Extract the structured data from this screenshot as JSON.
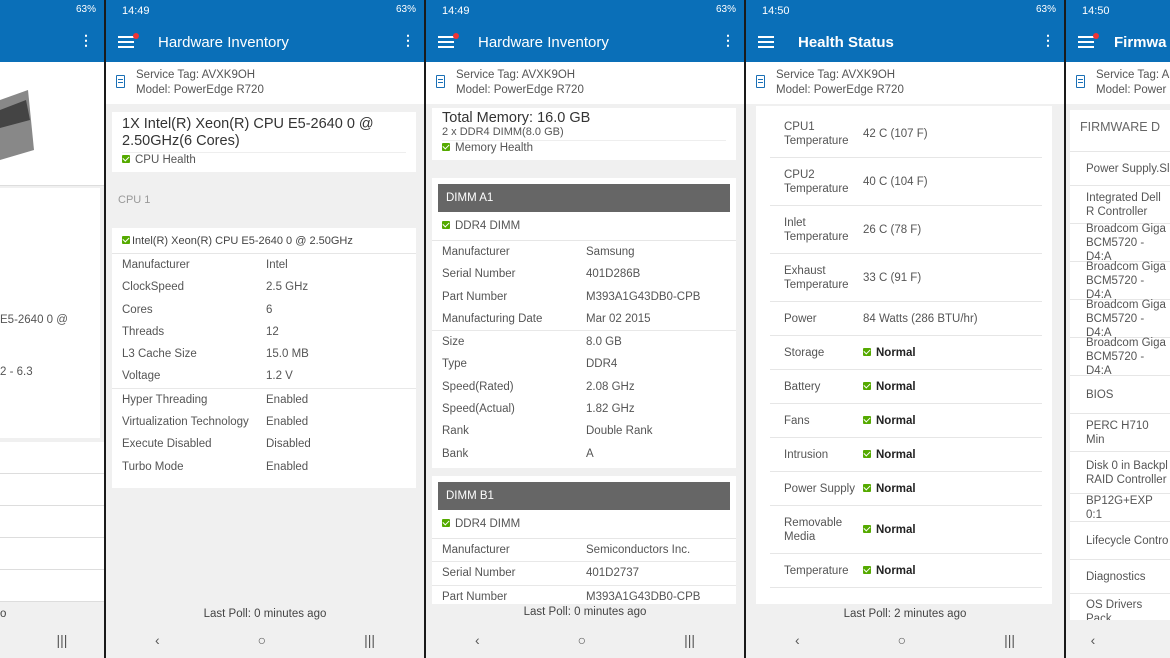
{
  "status": {
    "time1": "14:49",
    "time2": "14:49",
    "time3": "14:50",
    "time4": "14:50",
    "battery": "63%"
  },
  "phone1": {
    "cpu_text": "E5-2640 0 @",
    "range_text": "2 - 6.3",
    "footer": "o"
  },
  "phone2": {
    "title": "Hardware Inventory",
    "service_tag": "Service Tag: AVXK9OH",
    "model": "Model: PowerEdge R720",
    "cpu_title": "1X Intel(R) Xeon(R) CPU E5-2640 0 @ 2.50GHz(6 Cores)",
    "health": "CPU Health",
    "cpu_label": "CPU 1",
    "cpu_name": "Intel(R) Xeon(R) CPU E5-2640 0 @ 2.50GHz",
    "props": [
      {
        "k": "Manufacturer",
        "v": "Intel"
      },
      {
        "k": "ClockSpeed",
        "v": "2.5 GHz"
      },
      {
        "k": "Cores",
        "v": "6"
      },
      {
        "k": "Threads",
        "v": "12"
      },
      {
        "k": "L3 Cache Size",
        "v": "15.0 MB"
      },
      {
        "k": "Voltage",
        "v": "1.2 V"
      },
      {
        "k": "Hyper Threading",
        "v": "Enabled"
      },
      {
        "k": "Virtualization Technology",
        "v": "Enabled"
      },
      {
        "k": "Execute Disabled",
        "v": "Disabled"
      },
      {
        "k": "Turbo Mode",
        "v": "Enabled"
      }
    ],
    "footer": "Last Poll: 0 minutes ago"
  },
  "phone3": {
    "title": "Hardware Inventory",
    "service_tag": "Service Tag: AVXK9OH",
    "model": "Model: PowerEdge R720",
    "mem_title": "Total Memory: 16.0 GB",
    "mem_sub": "2 x DDR4 DIMM(8.0 GB)",
    "health": "Memory Health",
    "dimm1": {
      "name": "DIMM A1",
      "type": "DDR4 DIMM",
      "props": [
        {
          "k": "Manufacturer",
          "v": "Samsung"
        },
        {
          "k": "Serial Number",
          "v": "401D286B"
        },
        {
          "k": "Part Number",
          "v": "M393A1G43DB0-CPB"
        },
        {
          "k": "Manufacturing Date",
          "v": "Mar 02 2015"
        },
        {
          "k": "Size",
          "v": "8.0 GB"
        },
        {
          "k": "Type",
          "v": "DDR4"
        },
        {
          "k": "Speed(Rated)",
          "v": "2.08 GHz"
        },
        {
          "k": "Speed(Actual)",
          "v": "1.82 GHz"
        },
        {
          "k": "Rank",
          "v": "Double Rank"
        },
        {
          "k": "Bank",
          "v": "A"
        }
      ]
    },
    "dimm2": {
      "name": "DIMM B1",
      "type": "DDR4 DIMM",
      "props": [
        {
          "k": "Manufacturer",
          "v": "Semiconductors Inc."
        },
        {
          "k": "Serial Number",
          "v": "401D2737"
        },
        {
          "k": "Part Number",
          "v": "M393A1G43DB0-CPB"
        }
      ]
    },
    "footer": "Last Poll: 0 minutes ago"
  },
  "phone4": {
    "title": "Health Status",
    "service_tag": "Service Tag: AVXK9OH",
    "model": "Model: PowerEdge R720",
    "rows": [
      {
        "k": "CPU1 Temperature",
        "v": "42 C (107 F)"
      },
      {
        "k": "CPU2 Temperature",
        "v": "40 C (104 F)"
      },
      {
        "k": "Inlet Temperature",
        "v": "26 C (78 F)"
      },
      {
        "k": "Exhaust Temperature",
        "v": "33 C (91 F)"
      },
      {
        "k": "Power",
        "v": "84 Watts (286 BTU/hr)"
      },
      {
        "k": "Storage",
        "v": "Normal",
        "n": true
      },
      {
        "k": "Battery",
        "v": "Normal",
        "n": true
      },
      {
        "k": "Fans",
        "v": "Normal",
        "n": true
      },
      {
        "k": "Intrusion",
        "v": "Normal",
        "n": true
      },
      {
        "k": "Power Supply",
        "v": "Normal",
        "n": true
      },
      {
        "k": "Removable Media",
        "v": "Normal",
        "n": true
      },
      {
        "k": "Temperature",
        "v": "Normal",
        "n": true
      }
    ],
    "footer": "Last Poll: 2 minutes ago"
  },
  "phone5": {
    "title": "Firmwa",
    "service_tag": "Service Tag: A",
    "model": "Model: Power",
    "section": "FIRMWARE D",
    "rows": [
      "Power Supply.Sl",
      "Integrated Dell R Controller",
      "Broadcom Giga BCM5720 - D4:A",
      "Broadcom Giga BCM5720 - D4:A",
      "Broadcom Giga BCM5720 - D4:A",
      "Broadcom Giga BCM5720 - D4:A",
      "BIOS",
      "PERC H710 Min",
      "Disk 0 in Backpl RAID Controller",
      "BP12G+EXP 0:1",
      "Lifecycle Contro",
      "Diagnostics",
      "OS Drivers Pack"
    ]
  },
  "colors": {
    "appbar": "#0a6fb8",
    "check": "#55aa00"
  }
}
